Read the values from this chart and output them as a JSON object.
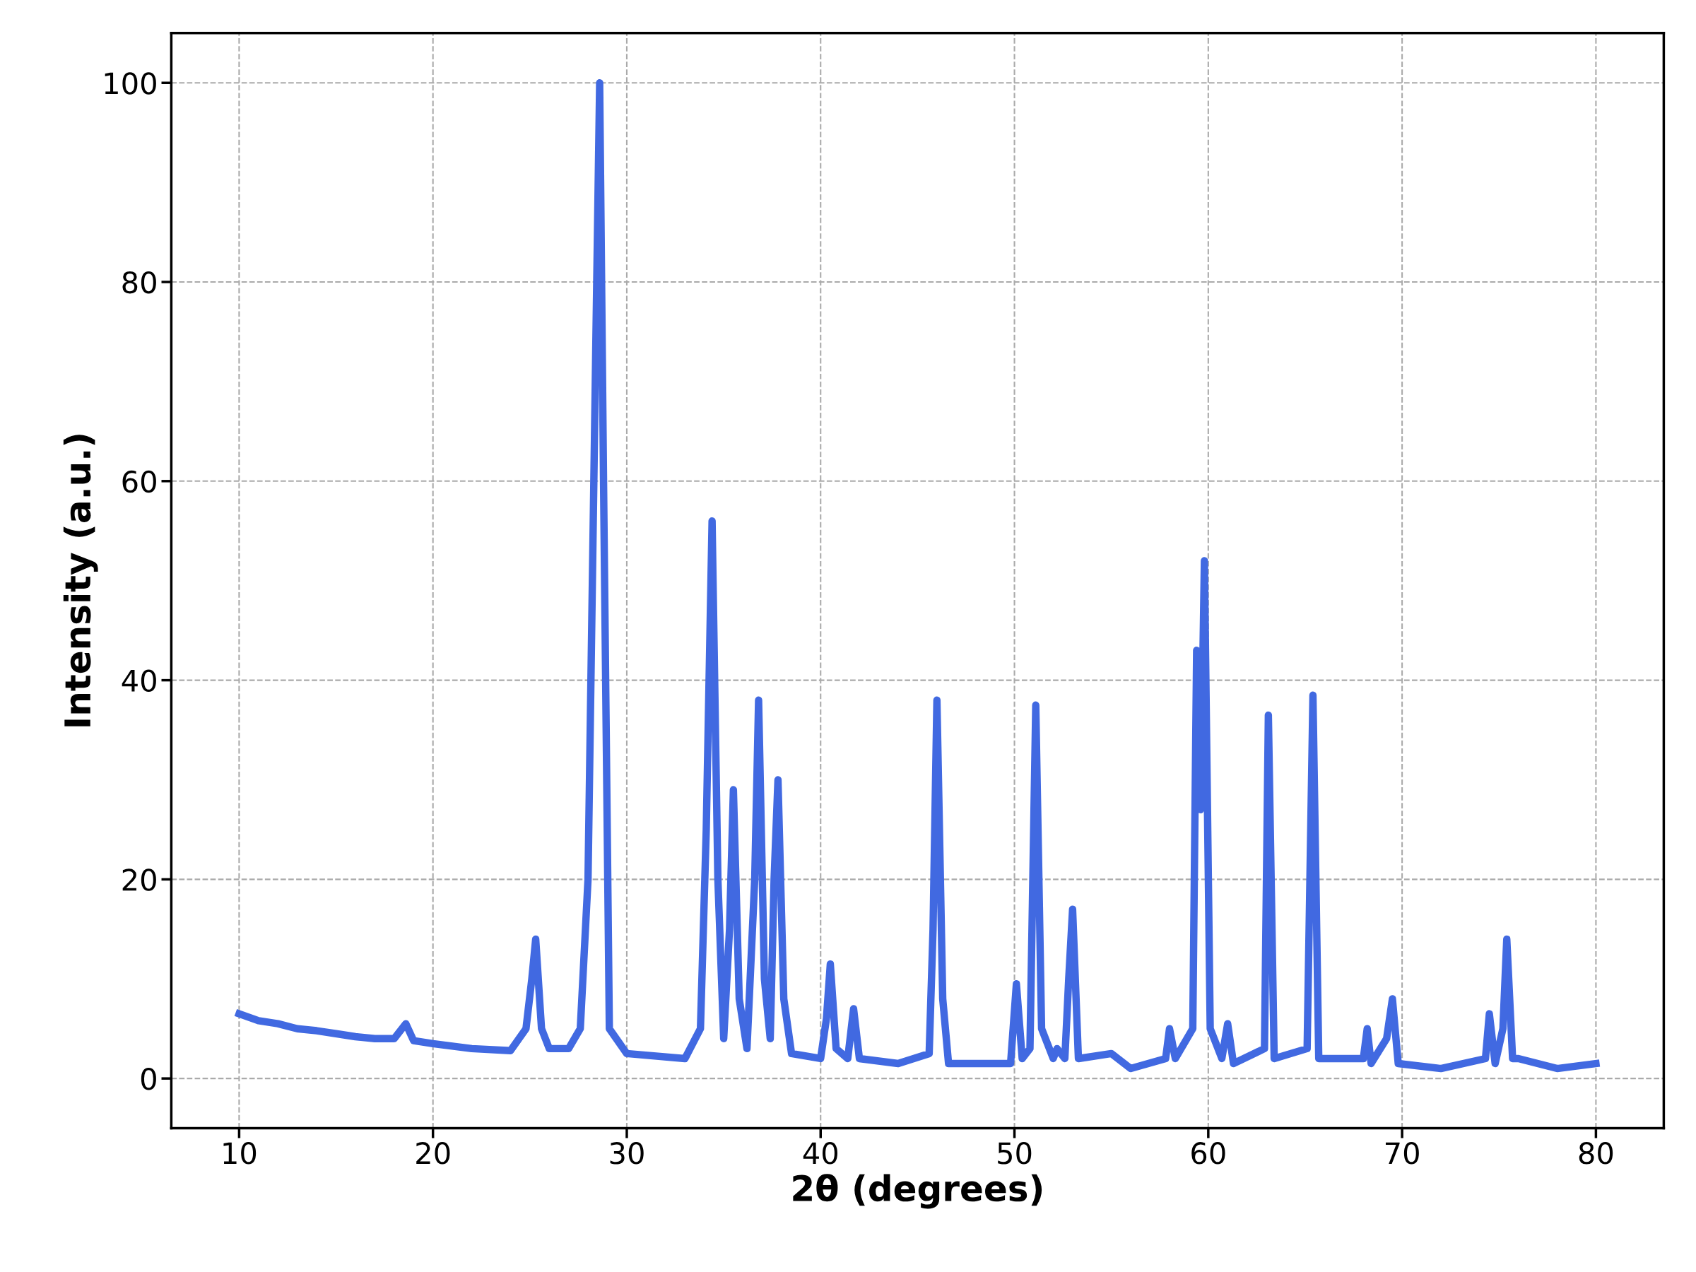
{
  "chart_data": {
    "type": "line",
    "xlabel": "2θ (degrees)",
    "ylabel": "Intensity (a.u.)",
    "xlim": [
      6.5,
      83.5
    ],
    "ylim": [
      -5,
      105
    ],
    "xticks": [
      10,
      20,
      30,
      40,
      50,
      60,
      70,
      80
    ],
    "yticks": [
      0,
      20,
      40,
      60,
      80,
      100
    ],
    "grid": true,
    "legend": false,
    "marker": "none",
    "line_style": "solid",
    "series": [
      {
        "color": "#4169e1",
        "x": [
          10.0,
          11,
          12,
          13,
          14,
          15,
          16,
          17,
          18,
          18.6,
          19,
          20,
          22,
          24,
          24.8,
          25.1,
          25.3,
          25.6,
          26,
          27,
          27.6,
          28,
          28.3,
          28.6,
          28.8,
          29.1,
          30,
          33,
          33.8,
          34.1,
          34.4,
          34.7,
          35.0,
          35.3,
          35.5,
          35.8,
          36.2,
          36.6,
          36.8,
          37.1,
          37.4,
          37.6,
          37.8,
          38.1,
          38.5,
          40,
          40.3,
          40.5,
          40.8,
          41.4,
          41.7,
          42,
          44,
          45.6,
          45.8,
          46.0,
          46.3,
          46.6,
          49.8,
          50.1,
          50.4,
          50.8,
          51.1,
          51.4,
          52,
          52.2,
          52.6,
          52.8,
          53.0,
          53.3,
          55.0,
          56,
          57.8,
          58.0,
          58.3,
          59.2,
          59.4,
          59.6,
          59.8,
          60.1,
          60.7,
          61.0,
          61.3,
          62.9,
          63.1,
          63.4,
          65.1,
          65.4,
          65.7,
          68,
          68.2,
          68.4,
          69.2,
          69.5,
          69.8,
          72,
          74.3,
          74.5,
          74.8,
          75.2,
          75.4,
          75.7,
          76,
          78,
          80
        ],
        "values": [
          6.5,
          5.8,
          5.5,
          5.0,
          4.8,
          4.5,
          4.2,
          4.0,
          4.0,
          5.5,
          3.8,
          3.5,
          3.0,
          2.8,
          5,
          10,
          14,
          5,
          3,
          3,
          5,
          20,
          60,
          100,
          60,
          5,
          2.5,
          2.0,
          5,
          25,
          56,
          20,
          4,
          15,
          29,
          8,
          3,
          20,
          38,
          10,
          4,
          20,
          30,
          8,
          2.5,
          2,
          6,
          11.5,
          3,
          2,
          7,
          2,
          1.5,
          2.5,
          15,
          38,
          8,
          1.5,
          1.5,
          9.5,
          2,
          3,
          37.5,
          5,
          2,
          3,
          2,
          10,
          17,
          2,
          2.5,
          1.0,
          2,
          5,
          2,
          5,
          43,
          27,
          52,
          5,
          2,
          5.5,
          1.5,
          3,
          36.5,
          2,
          3,
          38.5,
          2,
          2,
          5,
          1.5,
          4,
          8,
          1.5,
          1.0,
          2,
          6.5,
          1.5,
          5,
          14,
          2,
          2,
          1,
          1.5
        ]
      }
    ]
  }
}
